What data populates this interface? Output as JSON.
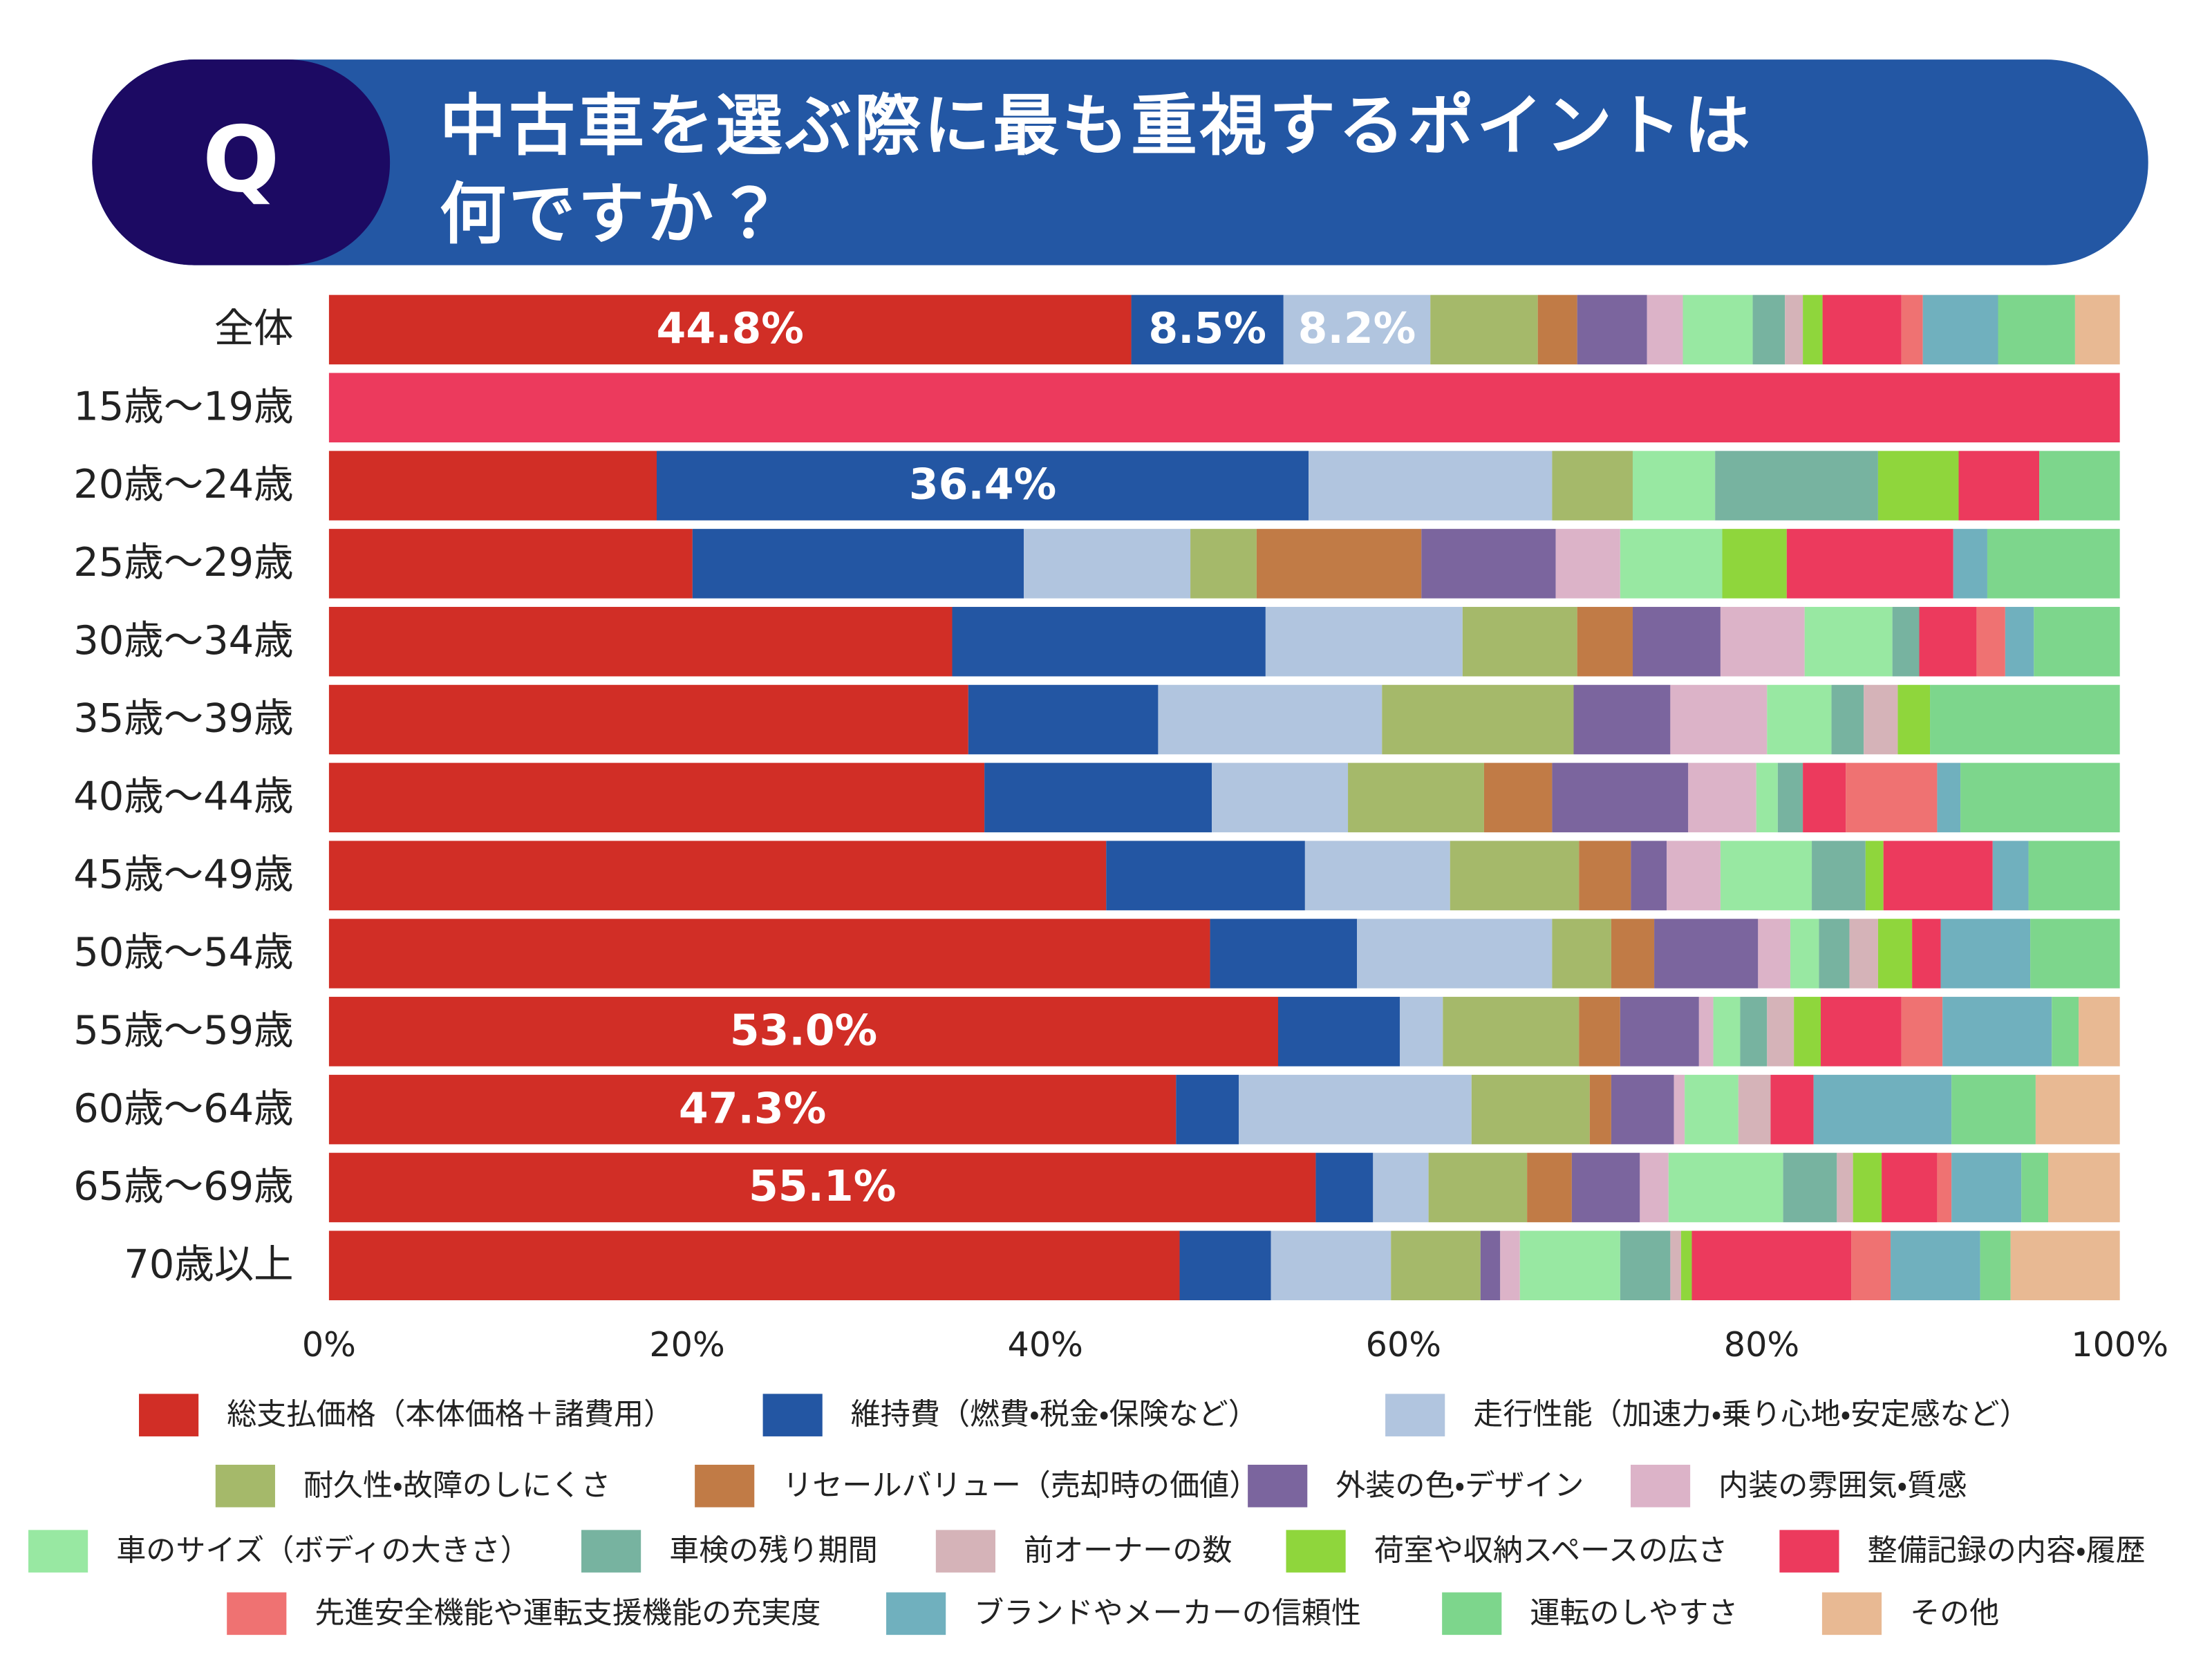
{
  "chart_data": {
    "type": "bar",
    "horizontal": true,
    "stacked": true,
    "badge": "Q",
    "title": "中古車を選ぶ際に最も重視するポイントは\n何ですか？",
    "categories": [
      "全体",
      "15歳〜19歳",
      "20歳〜24歳",
      "25歳〜29歳",
      "30歳〜34歳",
      "35歳〜39歳",
      "40歳〜44歳",
      "45歳〜49歳",
      "50歳〜54歳",
      "55歳〜59歳",
      "60歳〜64歳",
      "65歳〜69歳",
      "70歳以上"
    ],
    "xlim": [
      0,
      100
    ],
    "xticks": [
      {
        "value": 0,
        "label": "0%"
      },
      {
        "value": 20,
        "label": "20%"
      },
      {
        "value": 40,
        "label": "40%"
      },
      {
        "value": 60,
        "label": "60%"
      },
      {
        "value": 80,
        "label": "80%"
      },
      {
        "value": 100,
        "label": "100%"
      }
    ],
    "grid": false,
    "legend": "bottom",
    "series": [
      {
        "name": "総支払価格（本体価格＋諸費用）",
        "color": "#d12e26",
        "values": [
          44.8,
          0,
          18.3,
          20.3,
          34.8,
          35.7,
          36.6,
          43.4,
          49.2,
          53.0,
          47.3,
          55.1,
          47.5
        ],
        "value_labels": [
          "44.8%",
          null,
          null,
          null,
          null,
          null,
          null,
          null,
          null,
          "53.0%",
          "47.3%",
          "55.1%",
          null
        ]
      },
      {
        "name": "維持費（燃費・税金・保険など）",
        "color": "#2356a3",
        "values": [
          8.5,
          0,
          36.4,
          18.5,
          17.5,
          10.6,
          12.7,
          11.1,
          8.2,
          6.8,
          3.5,
          3.2,
          5.1
        ],
        "value_labels": [
          "8.5%",
          null,
          "36.4%",
          null,
          null,
          null,
          null,
          null,
          null,
          null,
          null,
          null,
          null
        ]
      },
      {
        "name": "走行性能（加速力・乗り心地・安定感など）",
        "color": "#b1c5df",
        "values": [
          8.2,
          0,
          13.6,
          9.3,
          11.0,
          12.5,
          7.6,
          8.1,
          10.9,
          2.4,
          13.0,
          3.1,
          6.7
        ],
        "value_labels": [
          "8.2%",
          null,
          null,
          null,
          null,
          null,
          null,
          null,
          null,
          null,
          null,
          null,
          null
        ]
      },
      {
        "name": "耐久性・故障のしにくさ",
        "color": "#a5b96a",
        "values": [
          6.0,
          0,
          4.5,
          3.7,
          6.4,
          10.7,
          7.6,
          7.2,
          3.3,
          7.6,
          6.6,
          5.5,
          5.0
        ]
      },
      {
        "name": "リセールバリュー（売却時の価値）",
        "color": "#c17b46",
        "values": [
          2.2,
          0,
          0,
          9.2,
          3.1,
          0,
          3.8,
          2.9,
          2.4,
          2.3,
          1.2,
          2.5,
          0
        ]
      },
      {
        "name": "外装の色・デザイン",
        "color": "#7b659e",
        "values": [
          3.9,
          0,
          0,
          7.5,
          4.9,
          5.4,
          7.6,
          2.0,
          5.8,
          4.4,
          3.5,
          3.8,
          1.1
        ]
      },
      {
        "name": "内装の雰囲気・質感",
        "color": "#dcb3c8",
        "values": [
          2.0,
          0,
          0,
          3.6,
          4.7,
          5.4,
          3.8,
          3.0,
          1.8,
          0.8,
          0.6,
          1.6,
          1.1
        ]
      },
      {
        "name": "車のサイズ（ボディの大きさ）",
        "color": "#98e8a2",
        "values": [
          3.9,
          0,
          4.6,
          5.7,
          4.9,
          3.6,
          1.2,
          5.1,
          1.6,
          1.5,
          3.0,
          6.4,
          5.6
        ]
      },
      {
        "name": "車検の残り期間",
        "color": "#77b3a0",
        "values": [
          1.8,
          0,
          9.1,
          0,
          1.5,
          1.8,
          1.4,
          3.0,
          1.7,
          1.5,
          0,
          3.0,
          2.8
        ]
      },
      {
        "name": "前オーナーの数",
        "color": "#d5b3b8",
        "values": [
          1.0,
          0,
          0,
          0,
          0,
          1.9,
          0,
          0,
          1.6,
          1.5,
          1.8,
          0.9,
          0.6
        ]
      },
      {
        "name": "荷室や収納スペースの広さ",
        "color": "#8fd63c",
        "values": [
          1.1,
          0,
          4.5,
          3.6,
          0,
          1.8,
          0,
          1.0,
          1.9,
          1.5,
          0,
          1.6,
          0.6
        ]
      },
      {
        "name": "整備記録の内容・履歴",
        "color": "#ec3a5d",
        "values": [
          4.4,
          100,
          4.5,
          9.3,
          3.2,
          0,
          2.4,
          6.1,
          1.6,
          4.5,
          2.4,
          3.1,
          8.9
        ]
      },
      {
        "name": "先進安全機能や運転支援機能の充実度",
        "color": "#ef7272",
        "values": [
          1.2,
          0,
          0,
          0,
          1.6,
          0,
          5.1,
          0,
          0,
          2.3,
          0,
          0.8,
          2.2
        ]
      },
      {
        "name": "ブランドやメーカーの信頼性",
        "color": "#70b0be",
        "values": [
          4.2,
          0,
          0,
          1.9,
          1.6,
          0,
          1.3,
          2.0,
          5.0,
          6.1,
          7.7,
          3.9,
          5.0
        ]
      },
      {
        "name": "運転のしやすさ",
        "color": "#7dd68c",
        "values": [
          4.3,
          0,
          4.5,
          7.4,
          4.8,
          10.6,
          8.9,
          5.1,
          5.0,
          1.5,
          4.7,
          1.5,
          1.7
        ]
      },
      {
        "name": "その他",
        "color": "#e8b993",
        "values": [
          2.5,
          0,
          0,
          0,
          0,
          0,
          0,
          0,
          0,
          2.3,
          4.7,
          4.0,
          6.1
        ]
      }
    ]
  }
}
